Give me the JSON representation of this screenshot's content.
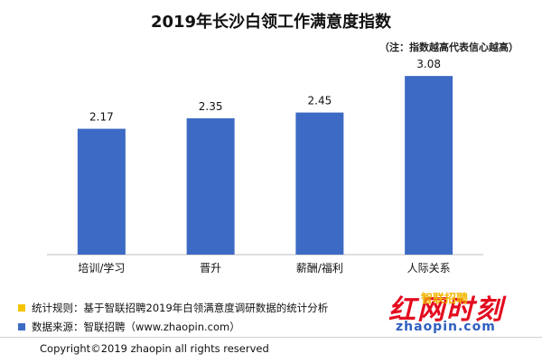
{
  "title": "2019年长沙白领工作满意度指数",
  "note": "（注：指数越高代表信心越高）",
  "chart_data": {
    "type": "bar",
    "categories": [
      "培训/学习",
      "晋升",
      "薪酬/福利",
      "人际关系"
    ],
    "values": [
      2.17,
      2.35,
      2.45,
      3.08
    ],
    "ylim": [
      0,
      3.3
    ],
    "bar_color": "#3d6ac4",
    "grid": false,
    "legend": "none"
  },
  "legend": [
    {
      "label": "统计规则：基于智联招聘2019年白领满意度调研数据的统计分析",
      "color": "#f5c400"
    },
    {
      "label": "数据来源：智联招聘（www.zhaopin.com）",
      "color": "#3d6ac4"
    }
  ],
  "copyright": "Copyright©2019  zhaopin all rights reserved",
  "watermark": {
    "main": "红网时刻",
    "sub": "zhaopin.com",
    "brand": "智联招聘"
  }
}
